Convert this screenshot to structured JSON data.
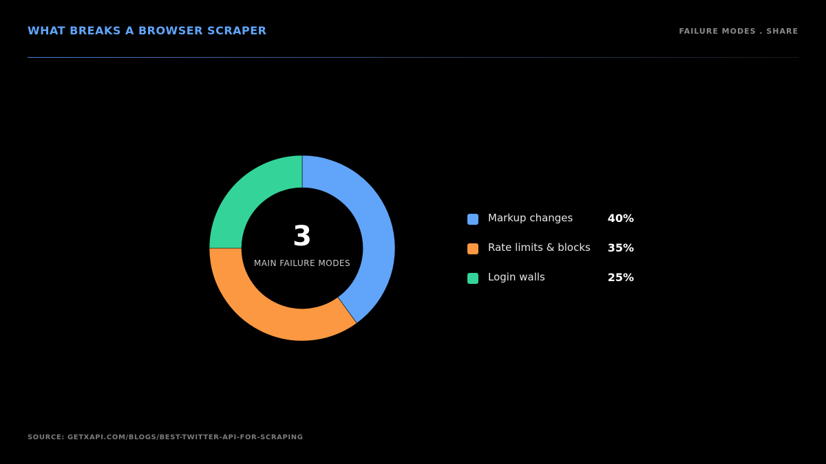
{
  "header": {
    "title": "WHAT BREAKS A BROWSER SCRAPER",
    "tag": "FAILURE MODES . SHARE"
  },
  "center": {
    "number": "3",
    "caption": "MAIN FAILURE MODES"
  },
  "source": "SOURCE: GETXAPI.COM/BLOGS/BEST-TWITTER-API-FOR-SCRAPING",
  "colors": {
    "background": "#000000",
    "title_accent": "#60a5fa",
    "rule": "#4d7fd6"
  },
  "chart_data": {
    "type": "pie",
    "variant": "donut",
    "title": "WHAT BREAKS A BROWSER SCRAPER",
    "legend_placement": "right",
    "categories": [
      "Markup changes",
      "Rate limits & blocks",
      "Login walls"
    ],
    "values": [
      40,
      35,
      25
    ],
    "value_labels": [
      "40%",
      "35%",
      "25%"
    ],
    "colors": [
      "#60a5fa",
      "#fb9841",
      "#34d399"
    ]
  }
}
